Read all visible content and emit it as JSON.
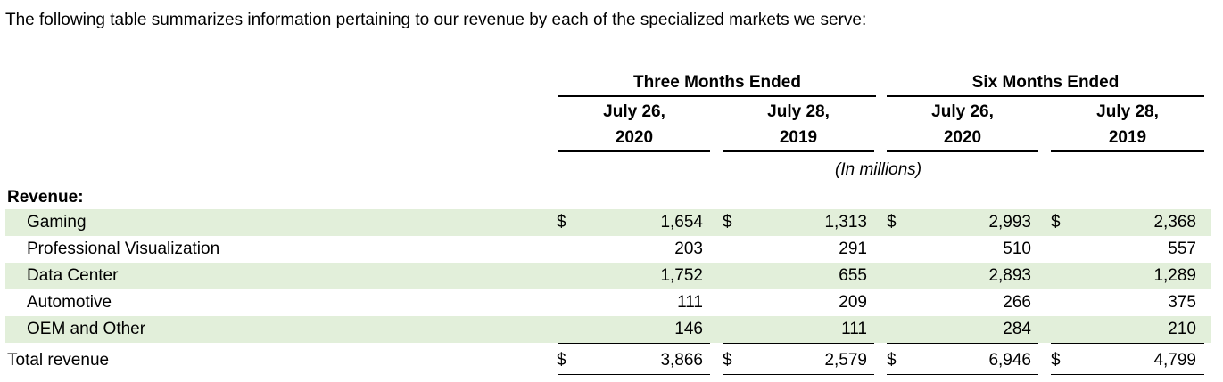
{
  "intro": "The following table summarizes information pertaining to our revenue by each of the specialized markets we serve:",
  "groups": [
    "Three Months Ended",
    "Six Months Ended"
  ],
  "columns": [
    {
      "line1": "July 26,",
      "line2": "2020"
    },
    {
      "line1": "July 28,",
      "line2": "2019"
    },
    {
      "line1": "July 26,",
      "line2": "2020"
    },
    {
      "line1": "July 28,",
      "line2": "2019"
    }
  ],
  "units": "(In millions)",
  "section": "Revenue:",
  "currency": "$",
  "rows": [
    {
      "label": "Gaming",
      "values": [
        "1,654",
        "1,313",
        "2,993",
        "2,368"
      ]
    },
    {
      "label": "Professional Visualization",
      "values": [
        "203",
        "291",
        "510",
        "557"
      ]
    },
    {
      "label": "Data Center",
      "values": [
        "1,752",
        "655",
        "2,893",
        "1,289"
      ]
    },
    {
      "label": "Automotive",
      "values": [
        "111",
        "209",
        "266",
        "375"
      ]
    },
    {
      "label": "OEM and Other",
      "values": [
        "146",
        "111",
        "284",
        "210"
      ]
    }
  ],
  "total": {
    "label": "Total revenue",
    "values": [
      "3,866",
      "2,579",
      "6,946",
      "4,799"
    ]
  }
}
